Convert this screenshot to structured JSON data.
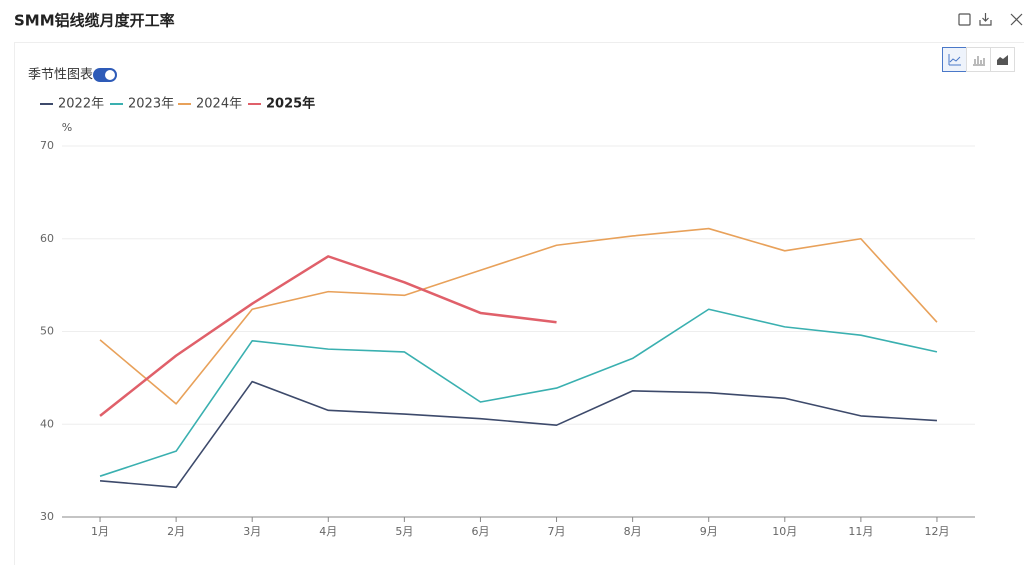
{
  "header": {
    "title": "SMM铝线缆月度开工率"
  },
  "toggle": {
    "label": "季节性图表"
  },
  "chart_data": {
    "type": "line",
    "y_unit": "%",
    "categories": [
      "1月",
      "2月",
      "3月",
      "4月",
      "5月",
      "6月",
      "7月",
      "8月",
      "9月",
      "10月",
      "11月",
      "12月"
    ],
    "series": [
      {
        "name": "2022年",
        "color": "#3d4a6b",
        "values": [
          33.9,
          33.2,
          44.6,
          41.5,
          41.1,
          40.6,
          39.9,
          43.6,
          43.4,
          42.8,
          40.9,
          40.4
        ]
      },
      {
        "name": "2023年",
        "color": "#3ab0b0",
        "values": [
          34.4,
          37.1,
          49.0,
          48.1,
          47.8,
          42.4,
          43.9,
          47.1,
          52.4,
          50.5,
          49.6,
          47.8
        ]
      },
      {
        "name": "2024年",
        "color": "#e8a15a",
        "values": [
          49.1,
          42.2,
          52.4,
          54.3,
          53.9,
          56.6,
          59.3,
          60.3,
          61.1,
          58.7,
          60.0,
          51.0
        ]
      },
      {
        "name": "2025年",
        "color": "#e0606a",
        "values": [
          40.9,
          47.4,
          53.0,
          58.1,
          55.3,
          52.0,
          51.0,
          null,
          null,
          null,
          null,
          null
        ]
      }
    ],
    "ylim": [
      30,
      70
    ],
    "yticks": [
      30,
      40,
      50,
      60,
      70
    ],
    "grid": true
  }
}
